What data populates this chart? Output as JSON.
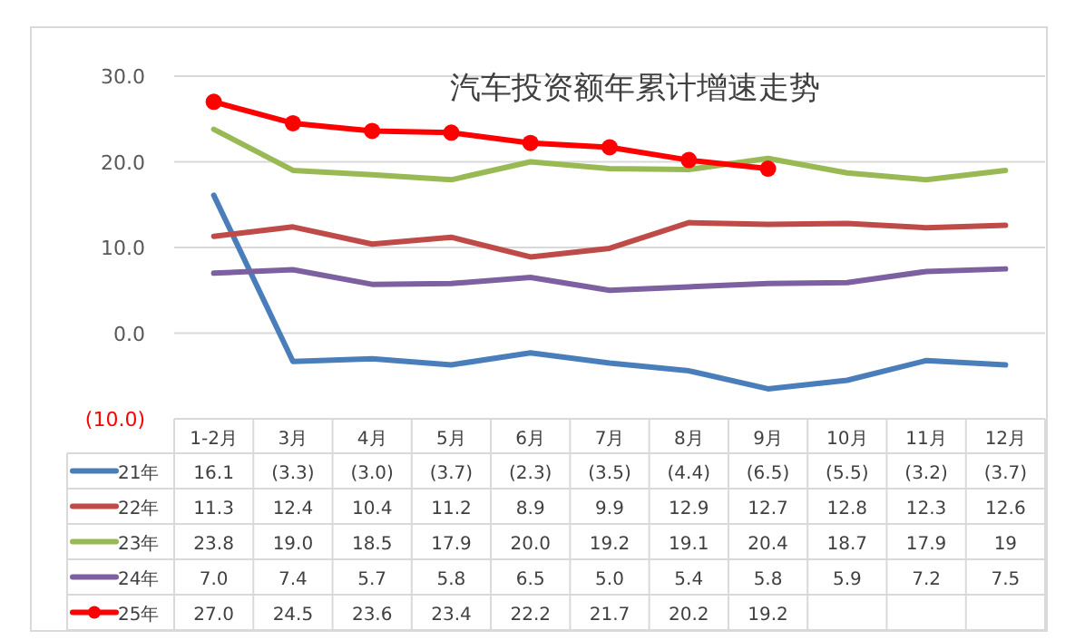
{
  "chart_data": {
    "type": "line",
    "title": "汽车投资额年累计增速走势",
    "categories": [
      "1-2月",
      "3月",
      "4月",
      "5月",
      "6月",
      "7月",
      "8月",
      "9月",
      "10月",
      "11月",
      "12月"
    ],
    "ylim": [
      -10,
      30
    ],
    "yticks": [
      {
        "value": -10,
        "label": "(10.0)"
      },
      {
        "value": 0,
        "label": "0.0"
      },
      {
        "value": 10,
        "label": "10.0"
      },
      {
        "value": 20,
        "label": "20.0"
      },
      {
        "value": 30,
        "label": "30.0"
      }
    ],
    "grid": "y",
    "legend": "bottom",
    "series": [
      {
        "name": "21年",
        "color": "#4a7ebb",
        "marker": "none",
        "values": [
          16.1,
          -3.3,
          -3.0,
          -3.7,
          -2.3,
          -3.5,
          -4.4,
          -6.5,
          -5.5,
          -3.2,
          -3.7
        ],
        "value_labels": [
          "16.1",
          "(3.3)",
          "(3.0)",
          "(3.7)",
          "(2.3)",
          "(3.5)",
          "(4.4)",
          "(6.5)",
          "(5.5)",
          "(3.2)",
          "(3.7)"
        ]
      },
      {
        "name": "22年",
        "color": "#be4b48",
        "marker": "none",
        "values": [
          11.3,
          12.4,
          10.4,
          11.2,
          8.9,
          9.9,
          12.9,
          12.7,
          12.8,
          12.3,
          12.6
        ],
        "value_labels": [
          "11.3",
          "12.4",
          "10.4",
          "11.2",
          "8.9",
          "9.9",
          "12.9",
          "12.7",
          "12.8",
          "12.3",
          "12.6"
        ]
      },
      {
        "name": "23年",
        "color": "#98b954",
        "marker": "none",
        "values": [
          23.8,
          19.0,
          18.5,
          17.9,
          20.0,
          19.2,
          19.1,
          20.4,
          18.7,
          17.9,
          19
        ],
        "value_labels": [
          "23.8",
          "19.0",
          "18.5",
          "17.9",
          "20.0",
          "19.2",
          "19.1",
          "20.4",
          "18.7",
          "17.9",
          "19"
        ]
      },
      {
        "name": "24年",
        "color": "#7d60a0",
        "marker": "none",
        "values": [
          7.0,
          7.4,
          5.7,
          5.8,
          6.5,
          5.0,
          5.4,
          5.8,
          5.9,
          7.2,
          7.5
        ],
        "value_labels": [
          "7.0",
          "7.4",
          "5.7",
          "5.8",
          "6.5",
          "5.0",
          "5.4",
          "5.8",
          "5.9",
          "7.2",
          "7.5"
        ]
      },
      {
        "name": "25年",
        "color": "#ff0000",
        "marker": "circle",
        "values": [
          27.0,
          24.5,
          23.6,
          23.4,
          22.2,
          21.7,
          20.2,
          19.2,
          null,
          null,
          null
        ],
        "value_labels": [
          "27.0",
          "24.5",
          "23.6",
          "23.4",
          "22.2",
          "21.7",
          "20.2",
          "19.2",
          null,
          null,
          null
        ]
      }
    ]
  }
}
